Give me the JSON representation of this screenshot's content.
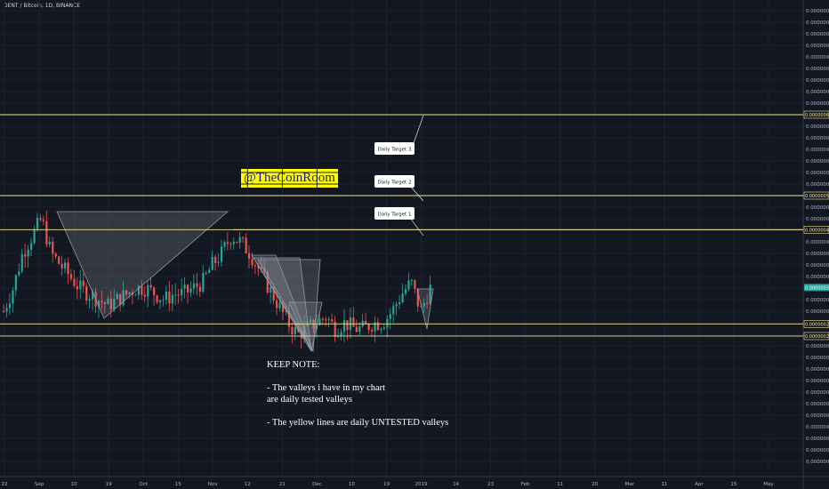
{
  "header": {
    "symbol_title": "DENT / Bitcoin, 1D, BINANCE"
  },
  "watermark": {
    "text": "@TheCoinRoom",
    "bg_color": "#ffff00",
    "text_color": "#1a237e"
  },
  "note": {
    "heading": "KEEP NOTE:",
    "line1": "- The valleys i have in my chart\n  are daily tested valleys",
    "line2": "- The yellow lines are daily UNTESTED valleys"
  },
  "colors": {
    "background": "#131722",
    "up": "#26a69a",
    "down": "#ef5350",
    "level_line": "#f0e68c",
    "triangle": "#9598a1"
  },
  "chart_data": {
    "type": "candlestick",
    "title": "DENT / Bitcoin, 1D, BINANCE",
    "x_ticks": [
      "22",
      "Sep",
      "10",
      "19",
      "Oct",
      "15",
      "Nov",
      "12",
      "21",
      "Dec",
      "10",
      "19",
      "2019",
      "14",
      "23",
      "Feb",
      "11",
      "20",
      "Mar",
      "11",
      "Apr",
      "15",
      "May"
    ],
    "y_ticks": [
      "0.00000082",
      "0.00000080",
      "0.00000078",
      "0.00000076",
      "0.00000074",
      "0.00000072",
      "0.00000070",
      "0.00000068",
      "0.00000066",
      "0.00000064",
      "0.00000062",
      "0.00000060",
      "0.00000058",
      "0.00000056",
      "0.00000054",
      "0.00000052",
      "0.00000050",
      "0.00000048",
      "0.00000046",
      "0.00000044",
      "0.00000042",
      "0.00000040",
      "0.00000038",
      "0.00000036",
      "0.00000034",
      "0.00000032",
      "0.00000030",
      "0.00000028",
      "0.00000026",
      "0.00000024",
      "0.00000022",
      "0.00000020",
      "0.00000018",
      "0.00000016",
      "0.00000014",
      "0.00000012",
      "0.00000010",
      "0.00000008",
      "0.00000006",
      "0.00000004"
    ],
    "ylim": [
      4e-08,
      8.2e-07
    ],
    "price_levels": [
      {
        "label": "0.00000064",
        "value": 6.4e-07
      },
      {
        "label": "0.00000050",
        "value": 5e-07
      },
      {
        "label": "0.00000044",
        "value": 4.41e-07
      },
      {
        "label": "0.00000028",
        "value": 2.78e-07
      },
      {
        "label": "0.00000026",
        "value": 2.57e-07
      }
    ],
    "current_price": {
      "label": "0.00000034",
      "value": 3.41e-07
    },
    "callouts": [
      "Daily Target 3",
      "Daily Target 2",
      "Daily Target 1"
    ],
    "series": [
      {
        "close_path": [
          3e-07,
          3.4e-07,
          4e-07,
          4.3e-07,
          4.6e-07,
          4e-07,
          3.8e-07,
          3.6e-07,
          3.4e-07,
          3.3e-07,
          3.2e-07,
          3.1e-07,
          3.2e-07,
          3.3e-07,
          3.4e-07,
          3.4e-07,
          3.3e-07,
          3.2e-07,
          3.3e-07,
          3.3e-07,
          3.4e-07,
          3.5e-07,
          3.8e-07,
          4e-07,
          4.3e-07,
          4.2e-07,
          4e-07,
          3.7e-07,
          3.4e-07,
          3.1e-07,
          2.8e-07,
          2.6e-07,
          2.7e-07,
          2.8e-07,
          2.9e-07,
          2.7e-07,
          2.8e-07,
          2.7e-07,
          2.7e-07,
          2.8e-07,
          2.8e-07,
          3e-07,
          3.3e-07,
          3.5e-07,
          3e-07,
          3.4e-07
        ]
      }
    ]
  }
}
